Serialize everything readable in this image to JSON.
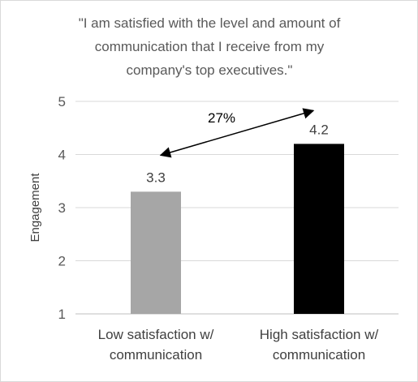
{
  "chart_data": {
    "type": "bar",
    "title_lines": [
      "\"I am satisfied with the level and amount of",
      "communication that I receive from my",
      "company's top executives.\""
    ],
    "categories": [
      [
        "Low satisfaction w/",
        "communication"
      ],
      [
        "High satisfaction w/",
        "communication"
      ]
    ],
    "values": [
      3.3,
      4.2
    ],
    "data_labels": [
      "3.3",
      "4.2"
    ],
    "bar_colors": [
      "#a6a6a6",
      "#000000"
    ],
    "ylabel": "Engagement",
    "xlabel": "",
    "ylim": [
      1,
      5
    ],
    "yticks": [
      "1",
      "2",
      "3",
      "4",
      "5"
    ],
    "grid": true,
    "annotation": {
      "text": "27%",
      "arrow": "double-headed between bar tops"
    }
  }
}
